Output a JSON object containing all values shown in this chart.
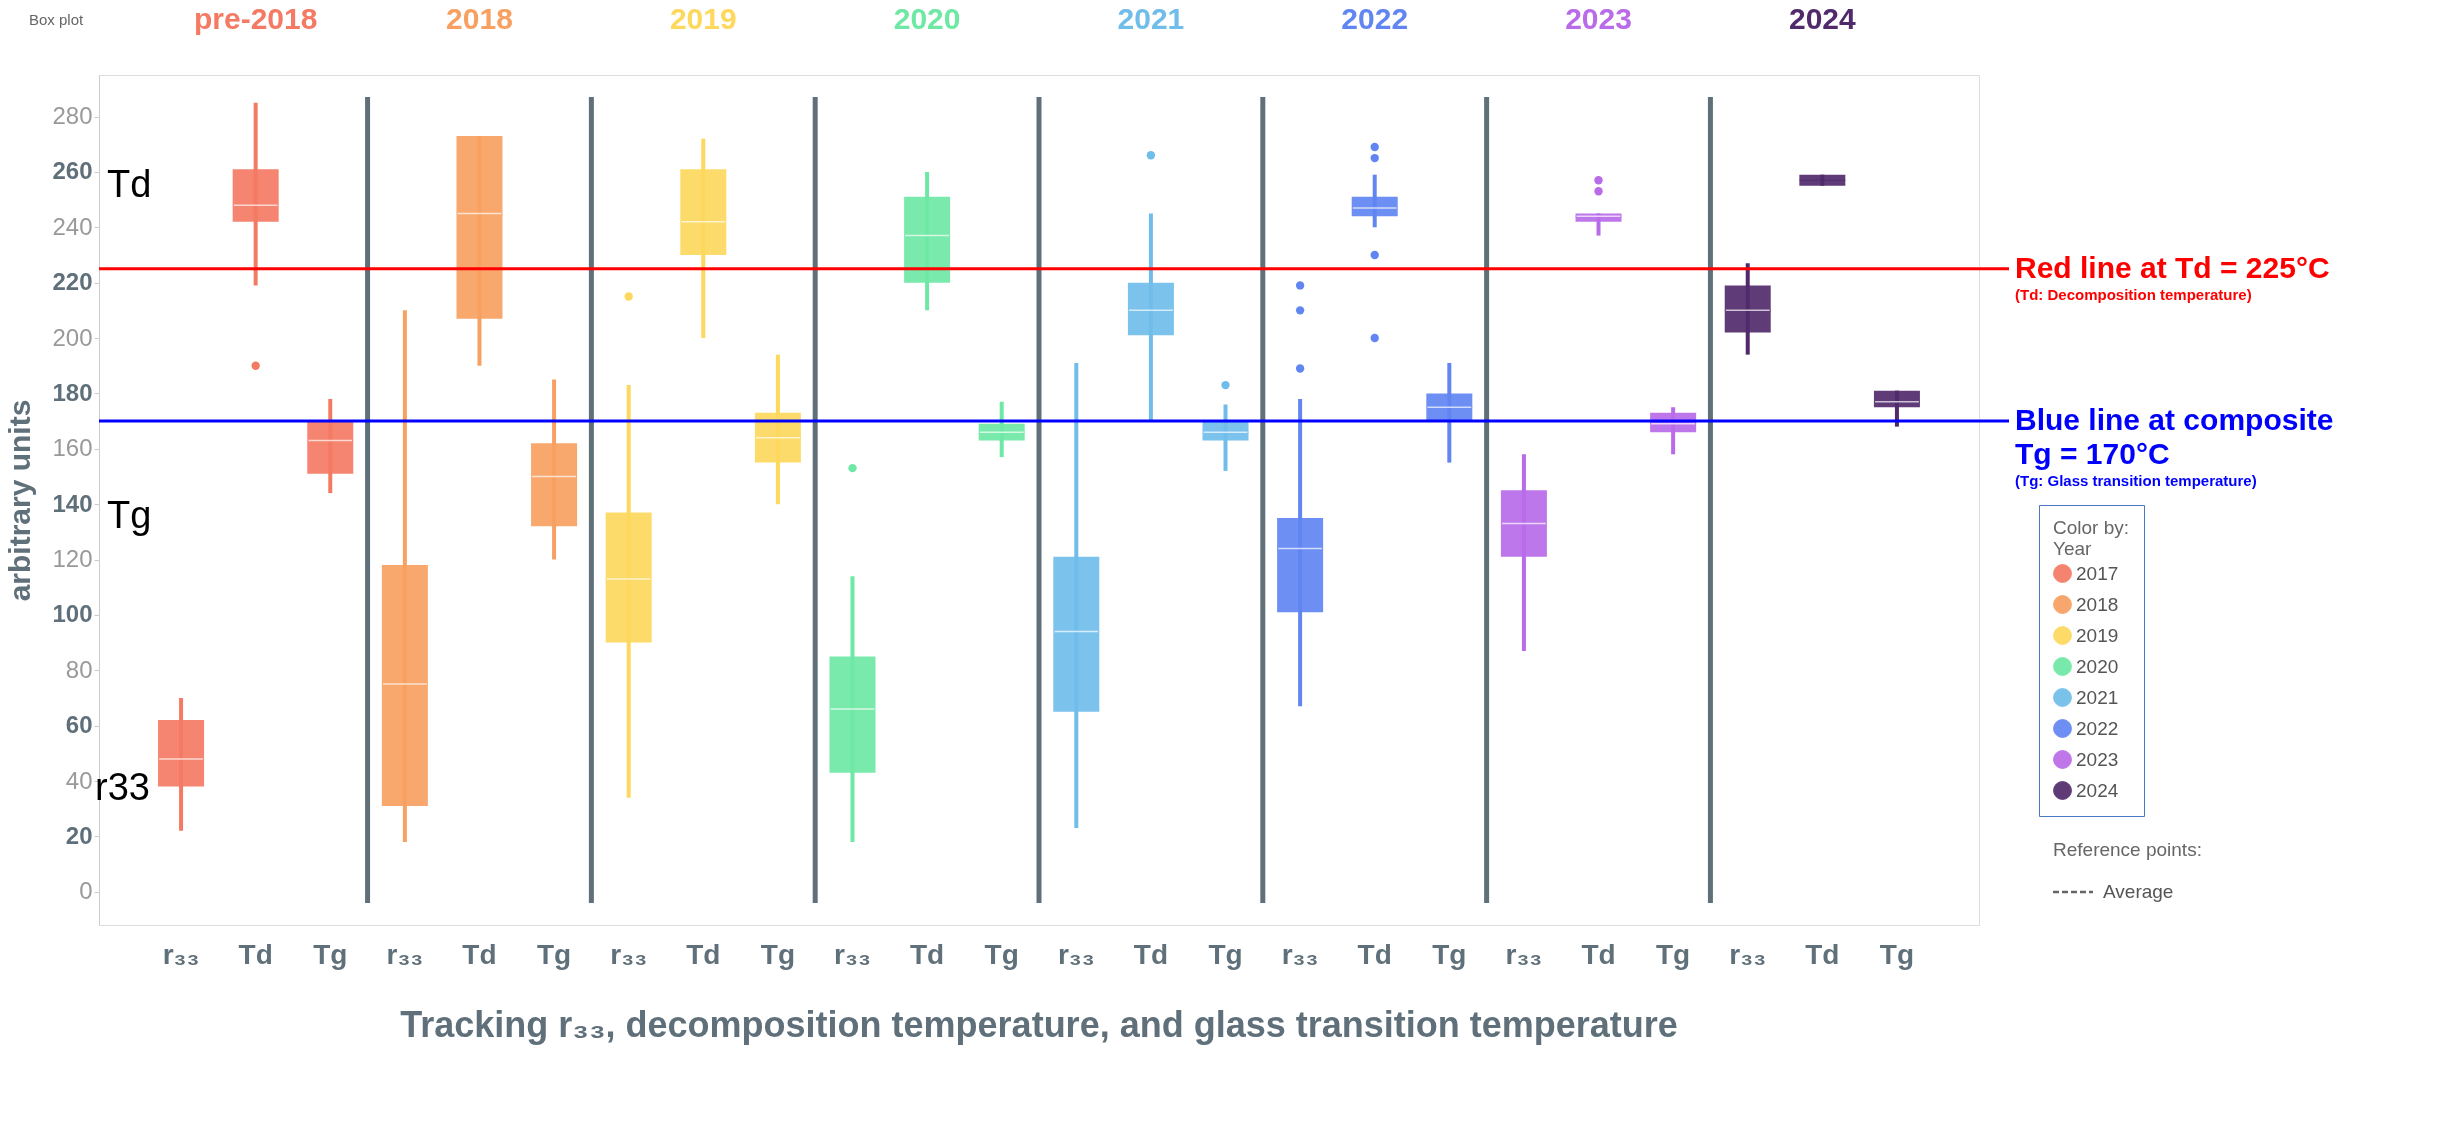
{
  "chart_data": {
    "type": "box",
    "title": "Tracking r₃₃, decomposition temperature, and glass transition temperature",
    "ylabel": "arbitrary units",
    "legend_title": "Color by:\nYear",
    "legend": "bottom right",
    "categories": [
      "r₃₃",
      "Td",
      "Tg",
      "r₃₃",
      "Td",
      "Tg",
      "r₃₃",
      "Td",
      "Tg",
      "r₃₃",
      "Td",
      "Tg",
      "r₃₃",
      "Td",
      "Tg",
      "r₃₃",
      "Td",
      "Tg",
      "r₃₃",
      "Td",
      "Tg",
      "r₃₃",
      "Td",
      "Tg"
    ],
    "ylim": [
      -12,
      295
    ],
    "yticks": [
      0,
      20,
      40,
      60,
      80,
      100,
      120,
      140,
      160,
      180,
      200,
      220,
      240,
      260,
      280
    ],
    "series": [
      {
        "name": "2017",
        "color": "#f47a64",
        "boxes": [
          {
            "low": 22,
            "q1": 38,
            "median": 48,
            "q3": 62,
            "high": 70,
            "mean": 48
          },
          {
            "low": 219,
            "q1": 242,
            "median": 248,
            "q3": 261,
            "high": 285,
            "mean": 248,
            "outliers": [
              190
            ]
          },
          {
            "low": 144,
            "q1": 151,
            "median": 163,
            "q3": 170,
            "high": 178,
            "mean": 163
          },
          null,
          null,
          null,
          null,
          null,
          null,
          null,
          null,
          null,
          null,
          null,
          null,
          null,
          null,
          null,
          null,
          null,
          null,
          null,
          null,
          null
        ]
      },
      {
        "name": "2018",
        "color": "#f7a061",
        "boxes": [
          null,
          null,
          null,
          {
            "low": 18,
            "q1": 31,
            "median": 75,
            "q3": 118,
            "high": 210,
            "mean": 75
          },
          {
            "low": 190,
            "q1": 207,
            "median": 245,
            "q3": 273,
            "high": 273,
            "mean": 245
          },
          {
            "low": 120,
            "q1": 132,
            "median": 150,
            "q3": 162,
            "high": 185,
            "mean": 150
          },
          null,
          null,
          null,
          null,
          null,
          null,
          null,
          null,
          null,
          null,
          null,
          null,
          null,
          null,
          null,
          null,
          null,
          null
        ]
      },
      {
        "name": "2019",
        "color": "#fdd85d",
        "boxes": [
          null,
          null,
          null,
          null,
          null,
          null,
          {
            "low": 34,
            "q1": 90,
            "median": 113,
            "q3": 137,
            "high": 183,
            "mean": 113,
            "outliers": [
              215
            ]
          },
          {
            "low": 200,
            "q1": 230,
            "median": 242,
            "q3": 261,
            "high": 272,
            "mean": 242
          },
          {
            "low": 140,
            "q1": 155,
            "median": 164,
            "q3": 173,
            "high": 194,
            "mean": 164
          },
          null,
          null,
          null,
          null,
          null,
          null,
          null,
          null,
          null,
          null,
          null,
          null,
          null,
          null,
          null
        ]
      },
      {
        "name": "2020",
        "color": "#6ee8a4",
        "boxes": [
          null,
          null,
          null,
          null,
          null,
          null,
          null,
          null,
          null,
          {
            "low": 18,
            "q1": 43,
            "median": 66,
            "q3": 85,
            "high": 114,
            "mean": 66,
            "outliers": [
              153
            ]
          },
          {
            "low": 210,
            "q1": 220,
            "median": 237,
            "q3": 251,
            "high": 260,
            "mean": 237
          },
          {
            "low": 157,
            "q1": 163,
            "median": 166,
            "q3": 169,
            "high": 177,
            "mean": 166
          },
          null,
          null,
          null,
          null,
          null,
          null,
          null,
          null,
          null,
          null,
          null,
          null
        ]
      },
      {
        "name": "2021",
        "color": "#70bdea",
        "boxes": [
          null,
          null,
          null,
          null,
          null,
          null,
          null,
          null,
          null,
          null,
          null,
          null,
          {
            "low": 23,
            "q1": 65,
            "median": 94,
            "q3": 121,
            "high": 191,
            "mean": 94
          },
          {
            "low": 170,
            "q1": 201,
            "median": 210,
            "q3": 220,
            "high": 245,
            "mean": 210,
            "outliers": [
              266
            ]
          },
          {
            "low": 152,
            "q1": 163,
            "median": 166,
            "q3": 170,
            "high": 176,
            "mean": 166,
            "outliers": [
              183
            ]
          },
          null,
          null,
          null,
          null,
          null,
          null,
          null,
          null,
          null
        ]
      },
      {
        "name": "2022",
        "color": "#6186f2",
        "boxes": [
          null,
          null,
          null,
          null,
          null,
          null,
          null,
          null,
          null,
          null,
          null,
          null,
          null,
          null,
          null,
          {
            "low": 67,
            "q1": 101,
            "median": 124,
            "q3": 135,
            "high": 178,
            "mean": 124,
            "outliers": [
              189,
              210,
              219
            ]
          },
          {
            "low": 240,
            "q1": 244,
            "median": 247,
            "q3": 251,
            "high": 259,
            "mean": 247,
            "outliers": [
              269,
              265,
              230,
              200
            ]
          },
          {
            "low": 155,
            "q1": 170,
            "median": 175,
            "q3": 180,
            "high": 191,
            "mean": 175
          },
          null,
          null,
          null,
          null,
          null,
          null
        ]
      },
      {
        "name": "2023",
        "color": "#b96be8",
        "boxes": [
          null,
          null,
          null,
          null,
          null,
          null,
          null,
          null,
          null,
          null,
          null,
          null,
          null,
          null,
          null,
          null,
          null,
          null,
          {
            "low": 87,
            "q1": 121,
            "median": 133,
            "q3": 145,
            "high": 158,
            "mean": 133
          },
          {
            "low": 237,
            "q1": 242,
            "median": 244,
            "q3": 245,
            "high": 245,
            "mean": 244,
            "outliers": [
              257,
              253
            ]
          },
          {
            "low": 158,
            "q1": 166,
            "median": 169,
            "q3": 173,
            "high": 175,
            "mean": 169
          },
          null,
          null,
          null
        ]
      },
      {
        "name": "2024",
        "color": "#512a6c",
        "boxes": [
          null,
          null,
          null,
          null,
          null,
          null,
          null,
          null,
          null,
          null,
          null,
          null,
          null,
          null,
          null,
          null,
          null,
          null,
          null,
          null,
          null,
          {
            "low": 194,
            "q1": 202,
            "median": 210,
            "q3": 219,
            "high": 227,
            "mean": 210
          },
          {
            "low": 255,
            "q1": 255,
            "median": 257,
            "q3": 259,
            "high": 259
          },
          {
            "low": 168,
            "q1": 175,
            "median": 177,
            "q3": 181,
            "high": 181,
            "mean": 177
          }
        ]
      }
    ],
    "ref_lines": [
      {
        "axis": "y",
        "value": 225,
        "label": "Red line at Td = 225°C\n(Td: Decomposition temperature)",
        "color": "#ff0000",
        "line_style": "solid"
      },
      {
        "axis": "y",
        "value": 170,
        "label": "Blue line at composite\nTg = 170°C\n(Tg: Glass transition temperature)",
        "color": "#0000ff",
        "line_style": "solid"
      }
    ],
    "annotations": [
      "Box plot",
      "pre-2018",
      "2018",
      "2019",
      "2020",
      "2021",
      "2022",
      "2023",
      "2024",
      "Reference points:",
      "Average",
      "Td",
      "Tg",
      "r33"
    ]
  }
}
